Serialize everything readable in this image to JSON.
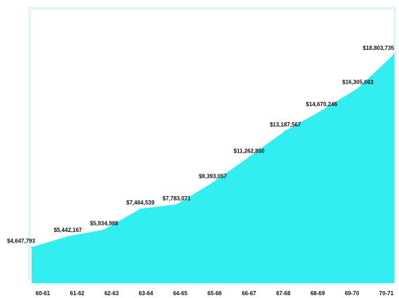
{
  "chart_data": {
    "type": "area",
    "title": "",
    "xlabel": "",
    "ylabel": "",
    "categories": [
      "60-61",
      "61-62",
      "62-63",
      "63-64",
      "64-65",
      "65-66",
      "66-67",
      "67-68",
      "68-69",
      "69-70",
      "70-71"
    ],
    "values": [
      4647793,
      5442167,
      5934988,
      7464539,
      7783071,
      9393057,
      11262850,
      13187567,
      14670246,
      16305663,
      18803735
    ],
    "data_labels": [
      "$4,647,793",
      "$5,442,167",
      "$5,934,988",
      "$7,464,539",
      "$7,783,071",
      "$9,393,057",
      "$11,262,850",
      "$13,187,567",
      "$14,670,246",
      "$16,305,663",
      "$18,803,735"
    ],
    "ylim": [
      2000000,
      19600000
    ],
    "grid": false,
    "legend": "none",
    "colors": {
      "area_fill": "#33eef0",
      "frame_border": "#e3f5f7",
      "label_text": "#111111"
    }
  }
}
